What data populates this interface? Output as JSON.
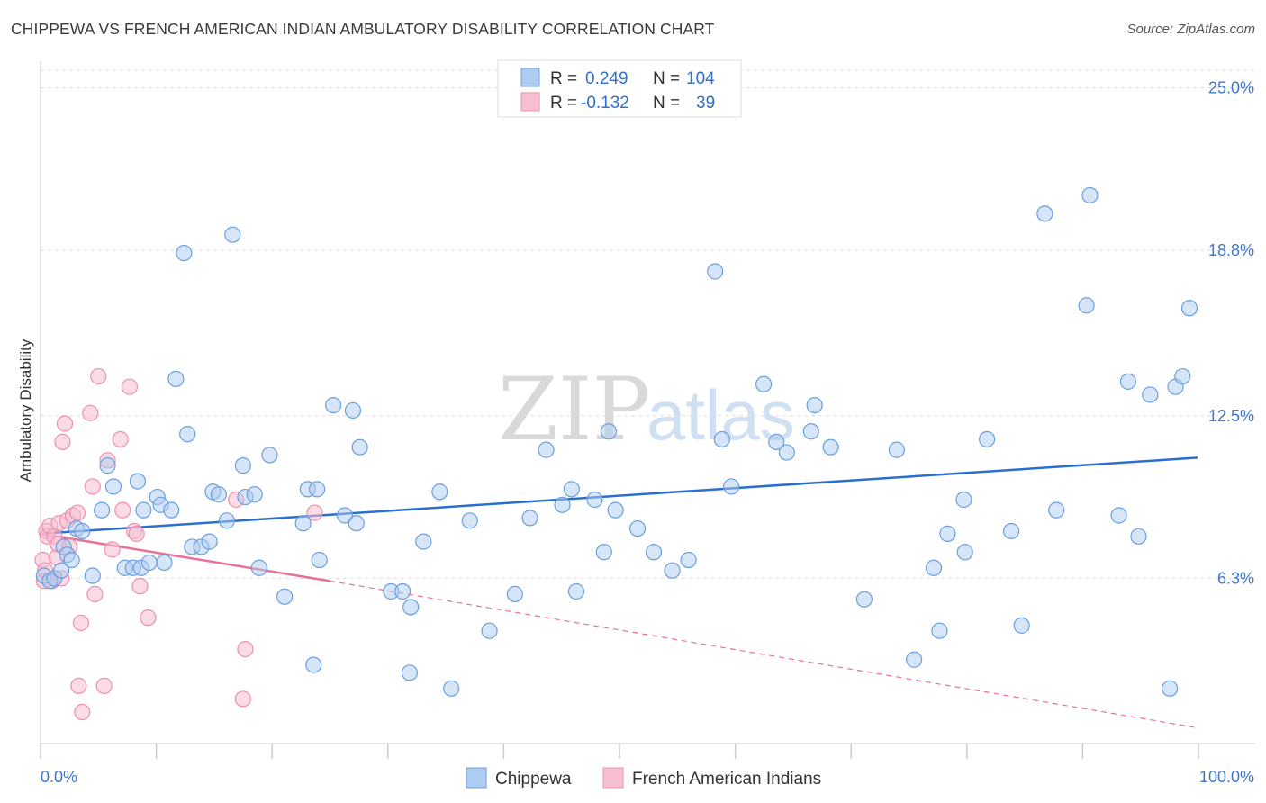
{
  "header": {
    "title": "CHIPPEWA VS FRENCH AMERICAN INDIAN AMBULATORY DISABILITY CORRELATION CHART",
    "source": "Source: ZipAtlas.com"
  },
  "watermark": {
    "zip": "ZIP",
    "atlas": "atlas"
  },
  "legend": {
    "rows": [
      {
        "r_label": "R =",
        "r_value": "0.249",
        "n_label": "N =",
        "n_value": "104",
        "color": "#6a9fe0"
      },
      {
        "r_label": "R =",
        "r_value": "-0.132",
        "n_label": "N =",
        "n_value": "39",
        "color": "#f08aab"
      }
    ]
  },
  "bottom_legend": [
    "Chippewa",
    "French American Indians"
  ],
  "colors": {
    "blue_fill": "#aecbf0",
    "blue_stroke": "#6a9fe0",
    "blue_line": "#2a6fd0",
    "pink_fill": "#f7c0d1",
    "pink_stroke": "#ee8fae",
    "pink_line": "#e8709a",
    "grid": "#dddddd",
    "axis_label": "#3f77cc"
  },
  "chart_data": {
    "type": "scatter",
    "title": "CHIPPEWA VS FRENCH AMERICAN INDIAN AMBULATORY DISABILITY CORRELATION CHART",
    "xlabel": "",
    "ylabel": "Ambulatory Disability",
    "xlim": [
      0,
      100
    ],
    "ylim": [
      0,
      25.5
    ],
    "x_tick_labels": [
      "0.0%",
      "100.0%"
    ],
    "y_ticks": [
      6.3,
      12.5,
      18.8,
      25.0
    ],
    "y_tick_labels": [
      "6.3%",
      "12.5%",
      "18.8%",
      "25.0%"
    ],
    "grid": true,
    "legend_position": "top-center",
    "series": [
      {
        "name": "Chippewa",
        "trend": {
          "x": [
            0,
            100
          ],
          "y": [
            8.0,
            10.9
          ],
          "style": "solid"
        },
        "points": [
          [
            0.3,
            6.4
          ],
          [
            0.8,
            6.2
          ],
          [
            1.2,
            6.3
          ],
          [
            1.8,
            6.6
          ],
          [
            2.0,
            7.5
          ],
          [
            2.3,
            7.2
          ],
          [
            2.7,
            7.0
          ],
          [
            3.1,
            8.2
          ],
          [
            3.6,
            8.1
          ],
          [
            4.5,
            6.4
          ],
          [
            5.3,
            8.9
          ],
          [
            5.8,
            10.6
          ],
          [
            6.3,
            9.8
          ],
          [
            7.3,
            6.7
          ],
          [
            8.0,
            6.7
          ],
          [
            8.7,
            6.7
          ],
          [
            8.4,
            10.0
          ],
          [
            8.9,
            8.9
          ],
          [
            9.4,
            6.9
          ],
          [
            10.1,
            9.4
          ],
          [
            10.4,
            9.1
          ],
          [
            10.7,
            6.9
          ],
          [
            11.3,
            8.9
          ],
          [
            11.7,
            13.9
          ],
          [
            12.4,
            18.7
          ],
          [
            12.7,
            11.8
          ],
          [
            13.1,
            7.5
          ],
          [
            13.9,
            7.5
          ],
          [
            14.6,
            7.7
          ],
          [
            14.9,
            9.6
          ],
          [
            15.4,
            9.5
          ],
          [
            16.1,
            8.5
          ],
          [
            16.6,
            19.4
          ],
          [
            17.5,
            10.6
          ],
          [
            17.7,
            9.4
          ],
          [
            18.5,
            9.5
          ],
          [
            18.9,
            6.7
          ],
          [
            19.8,
            11.0
          ],
          [
            21.1,
            5.6
          ],
          [
            22.7,
            8.4
          ],
          [
            23.1,
            9.7
          ],
          [
            23.6,
            3.0
          ],
          [
            23.9,
            9.7
          ],
          [
            24.1,
            7.0
          ],
          [
            25.3,
            12.9
          ],
          [
            26.3,
            8.7
          ],
          [
            27.0,
            12.7
          ],
          [
            27.3,
            8.4
          ],
          [
            27.6,
            11.3
          ],
          [
            30.3,
            5.8
          ],
          [
            31.3,
            5.8
          ],
          [
            31.9,
            2.7
          ],
          [
            32.0,
            5.2
          ],
          [
            33.1,
            7.7
          ],
          [
            34.5,
            9.6
          ],
          [
            35.5,
            2.1
          ],
          [
            37.1,
            8.5
          ],
          [
            38.8,
            4.3
          ],
          [
            41.0,
            5.7
          ],
          [
            42.3,
            8.6
          ],
          [
            43.7,
            11.2
          ],
          [
            45.1,
            9.1
          ],
          [
            45.9,
            9.7
          ],
          [
            46.3,
            5.8
          ],
          [
            47.9,
            9.3
          ],
          [
            48.7,
            7.3
          ],
          [
            49.1,
            11.9
          ],
          [
            49.7,
            8.9
          ],
          [
            51.6,
            8.2
          ],
          [
            53.0,
            7.3
          ],
          [
            54.6,
            6.6
          ],
          [
            56.0,
            7.0
          ],
          [
            58.3,
            18.0
          ],
          [
            58.9,
            11.6
          ],
          [
            59.7,
            9.8
          ],
          [
            62.5,
            13.7
          ],
          [
            63.6,
            11.5
          ],
          [
            64.5,
            11.1
          ],
          [
            66.6,
            11.9
          ],
          [
            66.9,
            12.9
          ],
          [
            68.3,
            11.3
          ],
          [
            71.2,
            5.5
          ],
          [
            74.0,
            11.2
          ],
          [
            75.5,
            3.2
          ],
          [
            77.2,
            6.7
          ],
          [
            77.7,
            4.3
          ],
          [
            78.4,
            8.0
          ],
          [
            79.8,
            9.3
          ],
          [
            79.9,
            7.3
          ],
          [
            81.8,
            11.6
          ],
          [
            83.9,
            8.1
          ],
          [
            84.8,
            4.5
          ],
          [
            87.8,
            8.9
          ],
          [
            86.8,
            20.2
          ],
          [
            90.4,
            16.7
          ],
          [
            90.7,
            20.9
          ],
          [
            93.2,
            8.7
          ],
          [
            94.0,
            13.8
          ],
          [
            94.9,
            7.9
          ],
          [
            95.9,
            13.3
          ],
          [
            97.6,
            2.1
          ],
          [
            98.1,
            13.6
          ],
          [
            98.7,
            14.0
          ],
          [
            99.3,
            16.6
          ]
        ]
      },
      {
        "name": "French American Indians",
        "trend": {
          "x": [
            0,
            25
          ],
          "y": [
            8.0,
            6.2
          ],
          "style": "solid",
          "extended_to": [
            100,
            0.6
          ],
          "extended_style": "dashed"
        },
        "points": [
          [
            0.2,
            7.0
          ],
          [
            0.4,
            6.6
          ],
          [
            0.5,
            8.1
          ],
          [
            0.6,
            7.9
          ],
          [
            0.8,
            8.3
          ],
          [
            1.0,
            6.2
          ],
          [
            1.2,
            7.9
          ],
          [
            1.4,
            7.1
          ],
          [
            1.5,
            7.6
          ],
          [
            1.6,
            8.4
          ],
          [
            1.8,
            6.3
          ],
          [
            1.9,
            11.5
          ],
          [
            2.1,
            12.2
          ],
          [
            2.3,
            8.5
          ],
          [
            2.5,
            7.5
          ],
          [
            2.8,
            8.7
          ],
          [
            3.2,
            8.8
          ],
          [
            3.5,
            4.6
          ],
          [
            3.3,
            2.2
          ],
          [
            3.6,
            1.2
          ],
          [
            4.3,
            12.6
          ],
          [
            4.5,
            9.8
          ],
          [
            4.7,
            5.7
          ],
          [
            5.0,
            14.0
          ],
          [
            5.5,
            2.2
          ],
          [
            5.8,
            10.8
          ],
          [
            6.2,
            7.4
          ],
          [
            6.9,
            11.6
          ],
          [
            7.1,
            8.9
          ],
          [
            7.7,
            13.6
          ],
          [
            8.1,
            8.1
          ],
          [
            8.3,
            8.0
          ],
          [
            8.6,
            6.0
          ],
          [
            9.3,
            4.8
          ],
          [
            16.9,
            9.3
          ],
          [
            17.7,
            3.6
          ],
          [
            17.5,
            1.7
          ],
          [
            23.7,
            8.8
          ],
          [
            0.3,
            6.2
          ]
        ]
      }
    ]
  }
}
